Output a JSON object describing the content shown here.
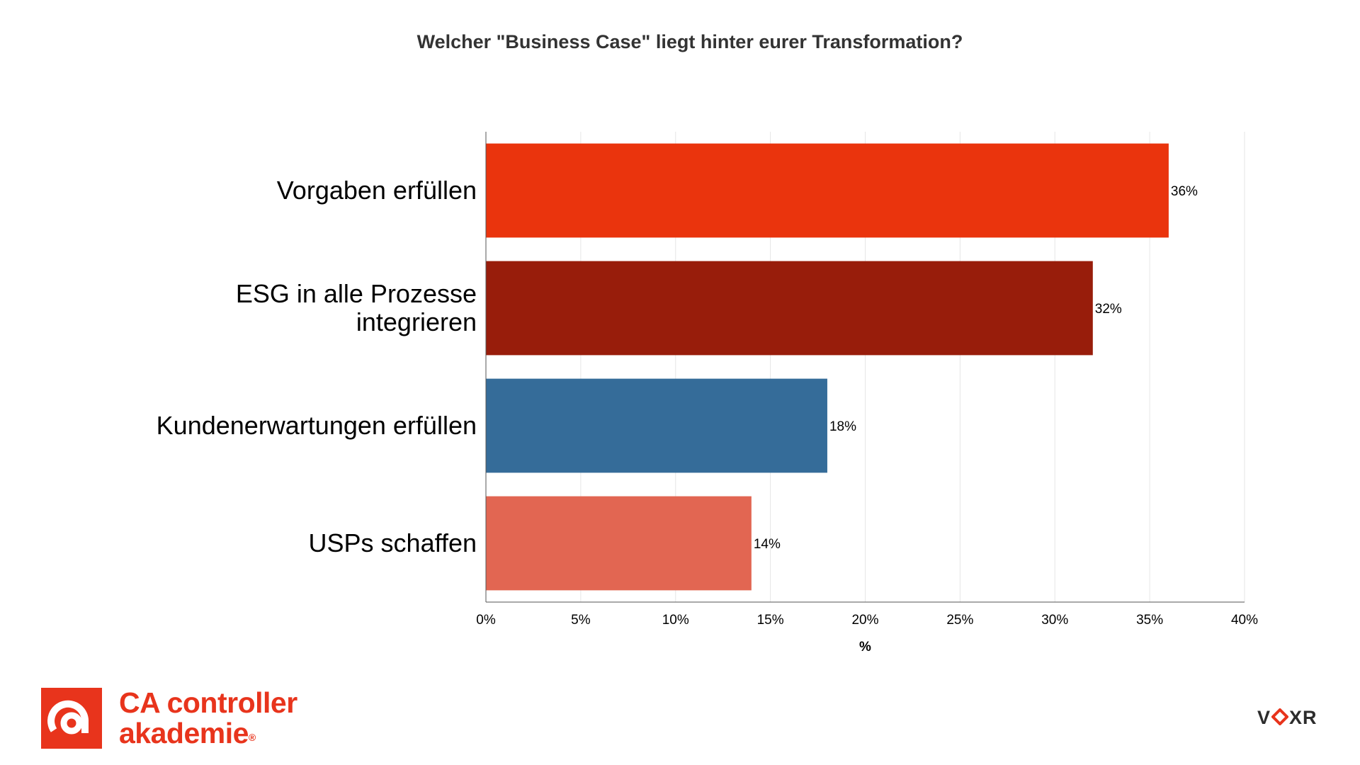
{
  "chart_data": {
    "type": "bar",
    "orientation": "horizontal",
    "title": "Welcher \"Business Case\" liegt hinter eurer Transformation?",
    "xlabel": "%",
    "ylabel": "",
    "xlim": [
      0,
      40
    ],
    "tick_values": [
      0,
      5,
      10,
      15,
      20,
      25,
      30,
      35,
      40
    ],
    "tick_labels": [
      "0%",
      "5%",
      "10%",
      "15%",
      "20%",
      "25%",
      "30%",
      "35%",
      "40%"
    ],
    "grid": true,
    "legend": "none",
    "categories": [
      [
        "Vorgaben erfüllen"
      ],
      [
        "ESG in alle Prozesse",
        "integrieren"
      ],
      [
        "Kundenerwartungen erfüllen"
      ],
      [
        "USPs schaffen"
      ]
    ],
    "values": [
      36,
      32,
      18,
      14
    ],
    "value_labels": [
      "36%",
      "32%",
      "18%",
      "14%"
    ],
    "colors": [
      "#ea340d",
      "#981d0b",
      "#356c99",
      "#e26652"
    ]
  },
  "logos": {
    "brand_line1": "CA controller",
    "brand_line2": "akademie",
    "brand_registered": "®",
    "partner_prefix": "V",
    "partner_suffix": "XR"
  }
}
